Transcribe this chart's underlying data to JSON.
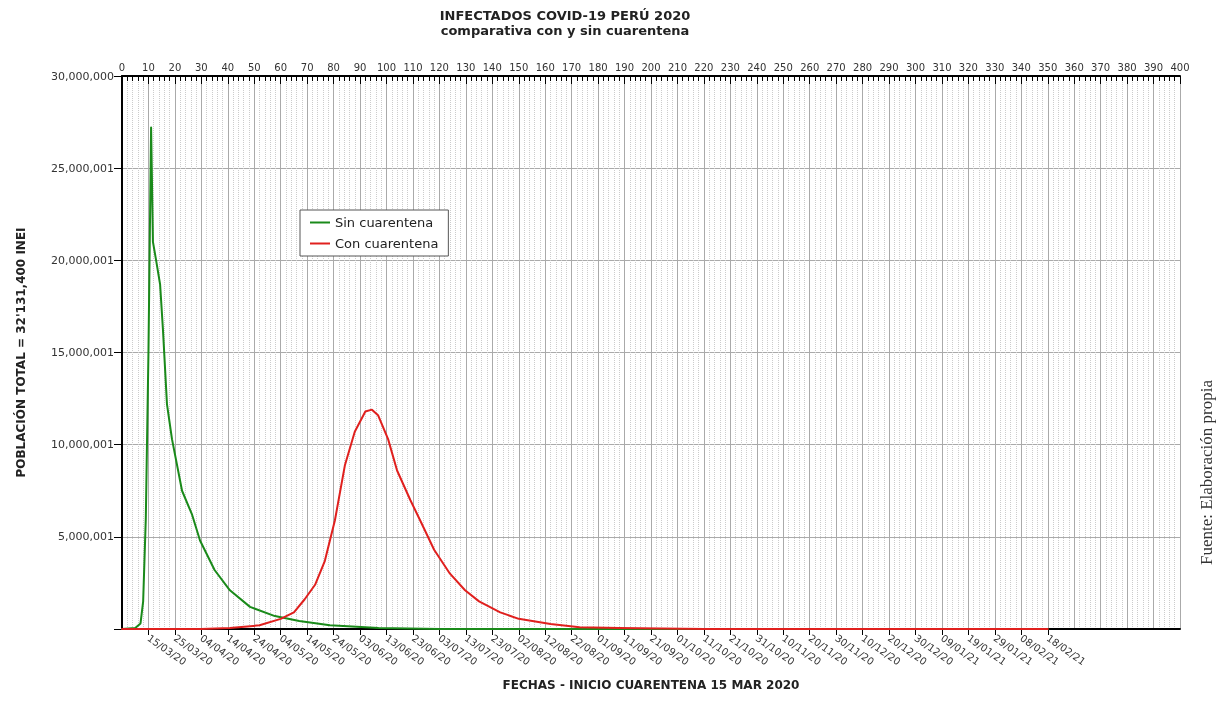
{
  "chart_data": {
    "type": "line",
    "title": "INFECTADOS COVID-19 PERÚ 2020",
    "subtitle": "comparativa con y sin cuarentena",
    "x2label": "FECHAS - INICIO CUARENTENA 15 MAR 2020",
    "ylabel": "POBLACIÓN TOTAL = 32'131,400 INEI",
    "annotations": [
      "Fuente: Elaboración propia"
    ],
    "series": [
      {
        "name": "Sin cuarentena",
        "color": "#1a8a1a",
        "x": [
          0,
          5,
          7,
          8,
          9,
          10,
          11,
          11.7,
          12.9,
          14.4,
          15.5,
          17,
          18.9,
          22.7,
          26.5,
          29.5,
          35,
          40.8,
          48.4,
          57.8,
          67,
          78.6,
          97,
          120,
          200,
          350
        ],
        "values": [
          0,
          50000,
          300000,
          1500000,
          6000000,
          15000000,
          27200000,
          21000000,
          20000000,
          18700000,
          16200000,
          12200000,
          10300000,
          7500000,
          6200000,
          4800000,
          3200000,
          2100000,
          1200000,
          700000,
          430000,
          200000,
          50000,
          0,
          0,
          0
        ]
      },
      {
        "name": "Con cuarentena",
        "color": "#e0201e",
        "x": [
          0,
          30,
          40.8,
          52,
          60,
          65,
          69,
          73,
          76.7,
          80.5,
          84.3,
          88,
          92,
          94.5,
          96.8,
          100.6,
          104,
          109,
          112.7,
          118,
          124,
          129.7,
          135,
          143,
          150,
          162,
          173,
          188,
          220,
          350
        ],
        "values": [
          0,
          0,
          50000,
          200000,
          550000,
          900000,
          1600000,
          2400000,
          3700000,
          5900000,
          8900000,
          10700000,
          11800000,
          11900000,
          11600000,
          10300000,
          8600000,
          7000000,
          5900000,
          4300000,
          3000000,
          2100000,
          1500000,
          900000,
          550000,
          270000,
          100000,
          50000,
          0,
          0
        ]
      }
    ],
    "x2lim": [
      "2020-03-05",
      "2021-04-09"
    ],
    "x2ticks": [
      {
        "value": "2020-03-15",
        "label": "15/03/20"
      },
      {
        "value": "2020-03-25",
        "label": "25/03/20"
      },
      {
        "value": "2020-04-04",
        "label": "04/04/20"
      },
      {
        "value": "2020-04-14",
        "label": "14/04/20"
      },
      {
        "value": "2020-04-24",
        "label": "24/04/20"
      },
      {
        "value": "2020-05-04",
        "label": "04/05/20"
      },
      {
        "value": "2020-05-14",
        "label": "14/05/20"
      },
      {
        "value": "2020-05-24",
        "label": "24/05/20"
      },
      {
        "value": "2020-06-03",
        "label": "03/06/20"
      },
      {
        "value": "2020-06-13",
        "label": "13/06/20"
      },
      {
        "value": "2020-06-23",
        "label": "23/06/20"
      },
      {
        "value": "2020-07-03",
        "label": "03/07/20"
      },
      {
        "value": "2020-07-13",
        "label": "13/07/20"
      },
      {
        "value": "2020-07-23",
        "label": "23/07/20"
      },
      {
        "value": "2020-08-02",
        "label": "02/08/20"
      },
      {
        "value": "2020-08-12",
        "label": "12/08/20"
      },
      {
        "value": "2020-08-22",
        "label": "22/08/20"
      },
      {
        "value": "2020-09-01",
        "label": "01/09/20"
      },
      {
        "value": "2020-09-11",
        "label": "11/09/20"
      },
      {
        "value": "2020-09-21",
        "label": "21/09/20"
      },
      {
        "value": "2020-10-01",
        "label": "01/10/20"
      },
      {
        "value": "2020-10-11",
        "label": "11/10/20"
      },
      {
        "value": "2020-10-21",
        "label": "21/10/20"
      },
      {
        "value": "2020-10-31",
        "label": "31/10/20"
      },
      {
        "value": "2020-11-10",
        "label": "10/11/20"
      },
      {
        "value": "2020-11-20",
        "label": "20/11/20"
      },
      {
        "value": "2020-11-30",
        "label": "30/11/20"
      },
      {
        "value": "2020-12-10",
        "label": "10/12/20"
      },
      {
        "value": "2020-12-20",
        "label": "20/12/20"
      },
      {
        "value": "2020-12-30",
        "label": "30/12/20"
      },
      {
        "value": "2021-01-09",
        "label": "09/01/21"
      },
      {
        "value": "2021-01-19",
        "label": "19/01/21"
      },
      {
        "value": "2021-01-29",
        "label": "29/01/21"
      },
      {
        "value": "2021-02-08",
        "label": "08/02/21"
      },
      {
        "value": "2021-02-18",
        "label": "18/02/21"
      }
    ],
    "xlim": [
      0,
      400
    ],
    "xticks": [
      0,
      10,
      20,
      30,
      40,
      50,
      60,
      70,
      80,
      90,
      100,
      110,
      120,
      130,
      140,
      150,
      160,
      170,
      180,
      190,
      200,
      210,
      220,
      230,
      240,
      250,
      260,
      270,
      280,
      290,
      300,
      310,
      320,
      330,
      340,
      350,
      360,
      370,
      380,
      390,
      400
    ],
    "ylim": [
      0,
      30000000
    ],
    "yticks": [
      {
        "value": 0,
        "label": null
      },
      {
        "value": 5000001,
        "label": "5,000,001"
      },
      {
        "value": 10000001,
        "label": "10,000,001"
      },
      {
        "value": 15000001,
        "label": "15,000,001"
      },
      {
        "value": 20000001,
        "label": "20,000,001"
      },
      {
        "value": 25000001,
        "label": "25,000,001"
      },
      {
        "value": 30000000,
        "label": "30,000,000"
      }
    ],
    "grid": true,
    "legend": "top left",
    "marker": "none",
    "line_style": "solid"
  }
}
